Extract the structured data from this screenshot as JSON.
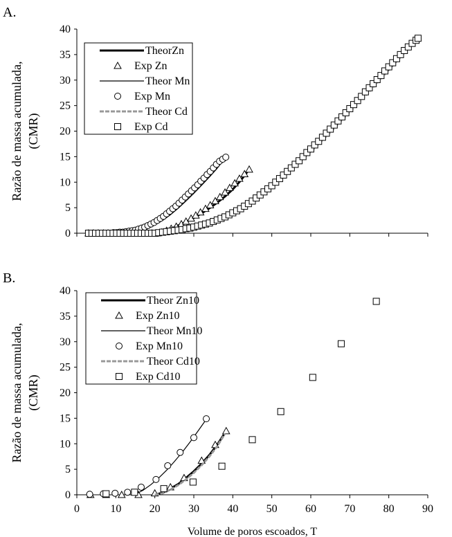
{
  "chart_data": [
    {
      "panel_label": "A.",
      "type": "scatter",
      "ylabel_lines": [
        "Razão de massa acumulada,",
        "(CMR)"
      ],
      "xlabel": "",
      "ylim": [
        0,
        40
      ],
      "xlim": [
        0,
        90
      ],
      "yticks": [
        0,
        5,
        10,
        15,
        20,
        25,
        30,
        35,
        40
      ],
      "xtick_labels_shown": false,
      "grid": false,
      "legend_position": "top-left",
      "legend": [
        {
          "label": "TheorZn",
          "kind": "line",
          "style": "thick"
        },
        {
          "label": "Exp Zn",
          "kind": "marker",
          "marker": "triangle"
        },
        {
          "label": "Theor Mn",
          "kind": "line",
          "style": "thin"
        },
        {
          "label": "Exp Mn",
          "kind": "marker",
          "marker": "circle"
        },
        {
          "label": "Theor Cd",
          "kind": "line",
          "style": "gray-dashed"
        },
        {
          "label": "Exp Cd",
          "kind": "marker",
          "marker": "square"
        }
      ],
      "series": [
        {
          "name": "TheorZn",
          "kind": "line",
          "style": "thick",
          "x": [
            20.5,
            22,
            24,
            26,
            28,
            30,
            32,
            34,
            36,
            38,
            40,
            42,
            44.2
          ],
          "y": [
            0,
            0.3,
            0.8,
            1.5,
            2.2,
            3.0,
            3.9,
            4.9,
            6.0,
            7.2,
            8.6,
            10.3,
            12.5
          ]
        },
        {
          "name": "Exp Zn",
          "kind": "marker",
          "marker": "triangle",
          "x": [
            3.0,
            4.2,
            5.5,
            6.8,
            8.0,
            9.3,
            10.5,
            11.8,
            13.0,
            14.3,
            15.5,
            16.8,
            18.0,
            19.3,
            20.5,
            21.8,
            23.0,
            24.2,
            25.5,
            26.8,
            28.0,
            29.3,
            30.5,
            31.7,
            33.0,
            34.2,
            35.5,
            36.7,
            38.0,
            39.2,
            40.5,
            41.7,
            43.0,
            44.2
          ],
          "y": [
            0,
            0,
            0,
            0,
            0,
            0,
            0,
            0,
            0,
            0,
            0,
            0,
            0,
            0,
            0,
            0.2,
            0.5,
            0.9,
            1.3,
            1.8,
            2.3,
            2.9,
            3.5,
            4.1,
            4.8,
            5.5,
            6.3,
            7.1,
            8.0,
            8.9,
            9.8,
            10.7,
            11.6,
            12.5
          ]
        },
        {
          "name": "Theor Mn",
          "kind": "line",
          "style": "thin",
          "x": [
            12,
            14,
            16,
            18,
            20,
            22,
            24,
            26,
            28,
            30,
            32,
            34,
            36,
            38.2
          ],
          "y": [
            0,
            0.1,
            0.4,
            0.9,
            1.6,
            2.5,
            3.6,
            4.9,
            6.3,
            7.8,
            9.4,
            11.0,
            12.7,
            14.9
          ]
        },
        {
          "name": "Exp Mn",
          "kind": "marker",
          "marker": "circle",
          "x": [
            3.0,
            3.8,
            4.6,
            5.4,
            6.2,
            7.0,
            7.8,
            8.6,
            9.4,
            10.2,
            11.0,
            11.8,
            12.6,
            13.4,
            14.2,
            15.0,
            15.8,
            16.6,
            17.4,
            18.2,
            19.0,
            19.8,
            20.6,
            21.4,
            22.2,
            23.0,
            23.8,
            24.6,
            25.4,
            26.2,
            27.0,
            27.8,
            28.6,
            29.4,
            30.2,
            31.0,
            31.8,
            32.6,
            33.4,
            34.2,
            35.0,
            35.8,
            36.6,
            37.4,
            38.2
          ],
          "y": [
            0,
            0,
            0,
            0,
            0,
            0,
            0,
            0,
            0.1,
            0.1,
            0.2,
            0.2,
            0.3,
            0.4,
            0.5,
            0.6,
            0.8,
            1.0,
            1.2,
            1.5,
            1.8,
            2.1,
            2.5,
            2.9,
            3.3,
            3.8,
            4.3,
            4.8,
            5.3,
            5.9,
            6.5,
            7.1,
            7.7,
            8.3,
            8.9,
            9.5,
            10.2,
            10.8,
            11.5,
            12.1,
            12.8,
            13.5,
            14.1,
            14.5,
            14.9
          ]
        },
        {
          "name": "Theor Cd",
          "kind": "line",
          "style": "gray-dashed",
          "x": [
            21,
            25,
            30,
            35,
            40,
            45,
            50,
            55,
            60,
            65,
            70,
            75,
            80,
            85,
            87.5
          ],
          "y": [
            0,
            0.5,
            1.3,
            2.6,
            4.3,
            6.5,
            9.3,
            12.5,
            16.0,
            19.8,
            23.8,
            27.8,
            32.0,
            36.2,
            38.2
          ]
        },
        {
          "name": "Exp Cd",
          "kind": "marker",
          "marker": "square",
          "x": [
            3.0,
            3.9,
            4.8,
            5.7,
            6.6,
            7.5,
            8.4,
            9.3,
            10.2,
            11.1,
            12.0,
            12.9,
            13.8,
            14.7,
            15.6,
            16.5,
            17.4,
            18.3,
            19.2,
            20.1,
            21.0,
            22.0,
            23.0,
            24.0,
            25.0,
            26.0,
            27.0,
            28.0,
            29.0,
            30.0,
            31.0,
            32.0,
            33.0,
            34.0,
            35.0,
            36.0,
            37.0,
            38.0,
            39.0,
            40.0,
            41.0,
            42.0,
            43.0,
            44.0,
            45.0,
            46.0,
            47.0,
            48.0,
            49.0,
            50.0,
            51.0,
            52.0,
            53.0,
            54.0,
            55.0,
            56.0,
            57.0,
            58.0,
            59.0,
            60.0,
            61.0,
            62.0,
            63.0,
            64.0,
            65.0,
            66.0,
            67.0,
            68.0,
            69.0,
            70.0,
            71.0,
            72.0,
            73.0,
            74.0,
            75.0,
            76.0,
            77.0,
            78.0,
            79.0,
            80.0,
            81.0,
            82.0,
            83.0,
            84.0,
            85.0,
            86.0,
            87.0,
            87.5
          ],
          "y": [
            0,
            0,
            0,
            0,
            0,
            0,
            0,
            0,
            0,
            0,
            0,
            0,
            0,
            0,
            0,
            0,
            0,
            0,
            0,
            0,
            0.1,
            0.2,
            0.3,
            0.4,
            0.5,
            0.6,
            0.7,
            0.9,
            1.0,
            1.2,
            1.4,
            1.6,
            1.8,
            2.0,
            2.3,
            2.6,
            2.9,
            3.2,
            3.6,
            4.0,
            4.4,
            4.8,
            5.3,
            5.8,
            6.3,
            6.9,
            7.5,
            8.1,
            8.7,
            9.3,
            10.0,
            10.7,
            11.4,
            12.1,
            12.8,
            13.5,
            14.2,
            15.0,
            15.8,
            16.5,
            17.3,
            18.0,
            18.8,
            19.6,
            20.4,
            21.2,
            22.0,
            22.8,
            23.6,
            24.4,
            25.2,
            26.0,
            26.8,
            27.7,
            28.5,
            29.3,
            30.1,
            30.9,
            31.8,
            32.6,
            33.4,
            34.2,
            35.0,
            35.8,
            36.5,
            37.2,
            37.8,
            38.2
          ]
        }
      ]
    },
    {
      "panel_label": "B.",
      "type": "scatter",
      "ylabel_lines": [
        "Razão de massa acumulada,",
        "(CMR)"
      ],
      "xlabel": "Volume de poros escoados, T",
      "ylim": [
        0,
        40
      ],
      "xlim": [
        0,
        90
      ],
      "yticks": [
        0,
        5,
        10,
        15,
        20,
        25,
        30,
        35,
        40
      ],
      "xticks": [
        0,
        10,
        20,
        30,
        40,
        50,
        60,
        70,
        80,
        90
      ],
      "xtick_labels_shown": true,
      "grid": false,
      "legend_position": "top-left",
      "legend": [
        {
          "label": "Theor Zn10",
          "kind": "line",
          "style": "thick"
        },
        {
          "label": "Exp Zn10",
          "kind": "marker",
          "marker": "triangle"
        },
        {
          "label": "Theor Mn10",
          "kind": "line",
          "style": "thin"
        },
        {
          "label": "Exp Mn10",
          "kind": "marker",
          "marker": "circle"
        },
        {
          "label": "Theor Cd10",
          "kind": "line",
          "style": "gray-dashed"
        },
        {
          "label": "Exp Cd10",
          "kind": "marker",
          "marker": "square"
        }
      ],
      "series": [
        {
          "name": "Theor Zn10",
          "kind": "line",
          "style": "thick",
          "x": [
            20,
            22,
            24,
            26,
            28,
            30,
            32,
            34,
            36,
            38.3
          ],
          "y": [
            0,
            0.4,
            1.2,
            2.1,
            3.3,
            4.6,
            6.1,
            7.8,
            9.8,
            12.5
          ]
        },
        {
          "name": "Exp Zn10",
          "kind": "marker",
          "marker": "triangle",
          "x": [
            3.5,
            7.5,
            11.5,
            15.8,
            20.0,
            24.0,
            27.5,
            32.0,
            35.5,
            38.3
          ],
          "y": [
            0,
            0,
            0,
            0,
            0.3,
            1.5,
            3.3,
            6.7,
            9.8,
            12.5
          ]
        },
        {
          "name": "Theor Mn10",
          "kind": "line",
          "style": "thin",
          "x": [
            15,
            17,
            19,
            21,
            23,
            25,
            27,
            29,
            31,
            33.3
          ],
          "y": [
            0.1,
            0.9,
            2.0,
            3.3,
            4.8,
            6.5,
            8.3,
            10.3,
            12.4,
            14.9
          ]
        },
        {
          "name": "Exp Mn10",
          "kind": "marker",
          "marker": "circle",
          "x": [
            3.3,
            6.8,
            9.8,
            13.0,
            16.5,
            20.3,
            23.3,
            26.5,
            30.0,
            33.2
          ],
          "y": [
            0.1,
            0.2,
            0.3,
            0.5,
            1.5,
            3.0,
            5.7,
            8.3,
            11.2,
            14.9
          ]
        },
        {
          "name": "Theor Cd10",
          "kind": "line",
          "style": "gray-dashed",
          "x": [
            20,
            22,
            24,
            26,
            28,
            30,
            32,
            34,
            36,
            38
          ],
          "y": [
            0,
            0.3,
            1.0,
            1.9,
            3.0,
            4.3,
            5.8,
            7.5,
            9.5,
            12.0
          ]
        },
        {
          "name": "Exp Cd10",
          "kind": "marker",
          "marker": "square",
          "x": [
            7.5,
            14.8,
            22.3,
            29.8,
            37.2,
            45.0,
            52.3,
            60.5,
            67.8,
            76.8
          ],
          "y": [
            0.2,
            0.5,
            1.2,
            2.5,
            5.6,
            10.8,
            16.3,
            23.0,
            29.6,
            37.9
          ]
        }
      ]
    }
  ]
}
